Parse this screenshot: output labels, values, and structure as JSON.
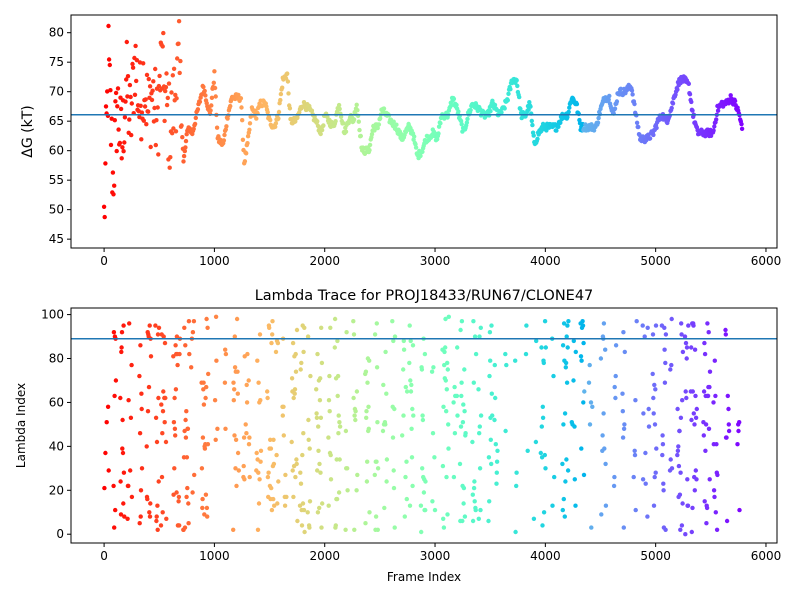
{
  "chart_data": [
    {
      "type": "scatter",
      "title": "",
      "xlabel": "",
      "ylabel": "ΔG (kT)",
      "xlim": [
        -300,
        6100
      ],
      "ylim": [
        43.5,
        83
      ],
      "xticks": [
        0,
        1000,
        2000,
        3000,
        4000,
        5000,
        6000
      ],
      "yticks": [
        45,
        50,
        55,
        60,
        65,
        70,
        75,
        80
      ],
      "hline": 66.1,
      "hline_color": "#1f77b4",
      "colormap": "rainbow",
      "colormap_direction": "red at frame 0 to violet at last frame",
      "segments": [
        [
          0,
          48
        ],
        [
          40,
          75
        ],
        [
          80,
          55
        ],
        [
          120,
          68
        ],
        [
          160,
          60
        ],
        [
          200,
          72
        ],
        [
          240,
          64
        ],
        [
          280,
          76
        ],
        [
          320,
          67
        ],
        [
          360,
          73
        ],
        [
          400,
          66
        ],
        [
          440,
          70
        ],
        [
          480,
          64
        ],
        [
          520,
          75
        ],
        [
          560,
          68
        ],
        [
          600,
          63
        ],
        [
          640,
          70
        ],
        [
          680,
          74
        ],
        [
          720,
          58
        ],
        [
          760,
          64
        ],
        [
          800,
          63
        ],
        [
          850,
          67
        ],
        [
          900,
          71
        ],
        [
          960,
          66
        ],
        [
          1000,
          73
        ],
        [
          1030,
          62
        ],
        [
          1080,
          61
        ],
        [
          1120,
          66
        ],
        [
          1160,
          69
        ],
        [
          1200,
          69
        ],
        [
          1240,
          69
        ],
        [
          1270,
          58
        ],
        [
          1300,
          61
        ],
        [
          1340,
          67
        ],
        [
          1380,
          66
        ],
        [
          1420,
          68
        ],
        [
          1460,
          68
        ],
        [
          1500,
          65
        ],
        [
          1540,
          64
        ],
        [
          1580,
          66
        ],
        [
          1620,
          72
        ],
        [
          1660,
          73
        ],
        [
          1690,
          65
        ],
        [
          1740,
          65
        ],
        [
          1800,
          68
        ],
        [
          1860,
          67
        ],
        [
          1920,
          65
        ],
        [
          1970,
          63
        ],
        [
          2000,
          66
        ],
        [
          2080,
          64
        ],
        [
          2130,
          68
        ],
        [
          2180,
          63
        ],
        [
          2230,
          66
        ],
        [
          2260,
          65
        ],
        [
          2290,
          68
        ],
        [
          2340,
          60
        ],
        [
          2400,
          60
        ],
        [
          2440,
          64
        ],
        [
          2480,
          64
        ],
        [
          2520,
          67
        ],
        [
          2560,
          66
        ],
        [
          2600,
          65
        ],
        [
          2650,
          64
        ],
        [
          2700,
          62
        ],
        [
          2760,
          64
        ],
        [
          2800,
          63
        ],
        [
          2840,
          59
        ],
        [
          2880,
          60
        ],
        [
          2920,
          62
        ],
        [
          2980,
          63
        ],
        [
          3020,
          62
        ],
        [
          3060,
          66
        ],
        [
          3120,
          66
        ],
        [
          3160,
          69
        ],
        [
          3200,
          67
        ],
        [
          3260,
          63
        ],
        [
          3300,
          66
        ],
        [
          3340,
          68
        ],
        [
          3400,
          67
        ],
        [
          3440,
          66
        ],
        [
          3480,
          66
        ],
        [
          3520,
          68
        ],
        [
          3580,
          66
        ],
        [
          3620,
          67
        ],
        [
          3660,
          69
        ],
        [
          3700,
          72
        ],
        [
          3740,
          72
        ],
        [
          3780,
          66
        ],
        [
          3820,
          66
        ],
        [
          3860,
          68
        ],
        [
          3900,
          61
        ],
        [
          3940,
          63
        ],
        [
          3980,
          64
        ],
        [
          4040,
          64
        ],
        [
          4100,
          64
        ],
        [
          4160,
          66
        ],
        [
          4200,
          66
        ],
        [
          4240,
          69
        ],
        [
          4280,
          68
        ],
        [
          4320,
          64
        ],
        [
          4400,
          64
        ],
        [
          4460,
          64
        ],
        [
          4500,
          67
        ],
        [
          4540,
          69
        ],
        [
          4580,
          69
        ],
        [
          4620,
          66
        ],
        [
          4660,
          70
        ],
        [
          4720,
          70
        ],
        [
          4780,
          71
        ],
        [
          4820,
          66
        ],
        [
          4860,
          62
        ],
        [
          4920,
          62
        ],
        [
          4980,
          63
        ],
        [
          5020,
          65
        ],
        [
          5060,
          66
        ],
        [
          5100,
          65
        ],
        [
          5140,
          67
        ],
        [
          5180,
          70
        ],
        [
          5220,
          72
        ],
        [
          5260,
          72
        ],
        [
          5300,
          71
        ],
        [
          5340,
          66
        ],
        [
          5380,
          63
        ],
        [
          5420,
          63
        ],
        [
          5480,
          63
        ],
        [
          5520,
          63
        ],
        [
          5560,
          67
        ],
        [
          5600,
          68
        ],
        [
          5640,
          68
        ],
        [
          5680,
          69
        ],
        [
          5720,
          68
        ],
        [
          5760,
          66
        ],
        [
          5790,
          63
        ]
      ]
    },
    {
      "type": "scatter",
      "title": "Lambda Trace for PROJ18433/RUN67/CLONE47",
      "xlabel": "Frame Index",
      "ylabel": "Lambda Index",
      "xlim": [
        -300,
        6100
      ],
      "ylim": [
        -4,
        103
      ],
      "xticks": [
        0,
        1000,
        2000,
        3000,
        4000,
        5000,
        6000
      ],
      "yticks": [
        0,
        20,
        40,
        60,
        80,
        100
      ],
      "hline": 89,
      "hline_color": "#1f77b4",
      "colormap": "rainbow",
      "lambda_min": 0,
      "lambda_max": 99,
      "frame_max": 5800
    }
  ]
}
